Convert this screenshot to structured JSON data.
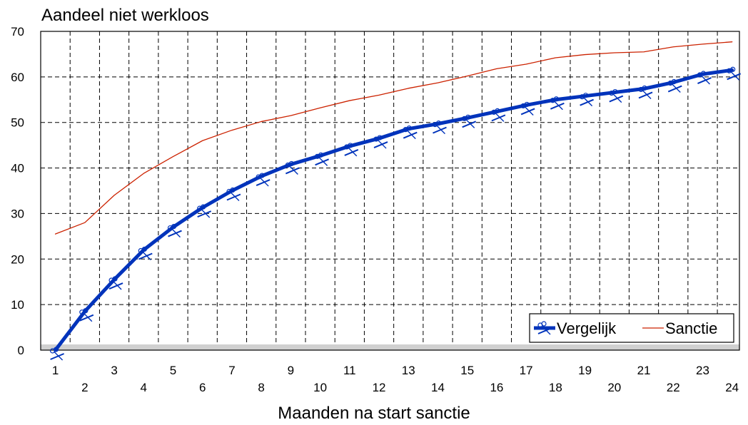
{
  "chart_data": {
    "type": "line",
    "ylabel": "Aandeel niet werkloos",
    "xlabel": "Maanden na start sanctie",
    "x": [
      1,
      2,
      3,
      4,
      5,
      6,
      7,
      8,
      9,
      10,
      11,
      12,
      13,
      14,
      15,
      16,
      17,
      18,
      19,
      20,
      21,
      22,
      23,
      24
    ],
    "ylim": [
      0,
      70
    ],
    "yticks": [
      0,
      10,
      20,
      30,
      40,
      50,
      60,
      70
    ],
    "grid": true,
    "legend_position": "bottom-right",
    "series": [
      {
        "name": "Vergelijk",
        "color": "#0033bb",
        "marker": "scissors",
        "values": [
          0,
          8.5,
          15.5,
          22,
          27,
          31.3,
          35,
          38.2,
          40.8,
          42.7,
          44.8,
          46.5,
          48.6,
          49.7,
          51,
          52.4,
          53.8,
          55,
          55.8,
          56.6,
          57.4,
          58.8,
          60.6,
          61.5
        ]
      },
      {
        "name": "Sanctie",
        "color": "#cc2200",
        "marker": "none",
        "values": [
          25.5,
          28,
          34,
          38.8,
          42.5,
          46,
          48.3,
          50.2,
          51.5,
          53.2,
          54.8,
          56,
          57.5,
          58.7,
          60.2,
          61.8,
          62.8,
          64.2,
          64.9,
          65.3,
          65.5,
          66.6,
          67.2,
          67.7
        ]
      }
    ]
  }
}
